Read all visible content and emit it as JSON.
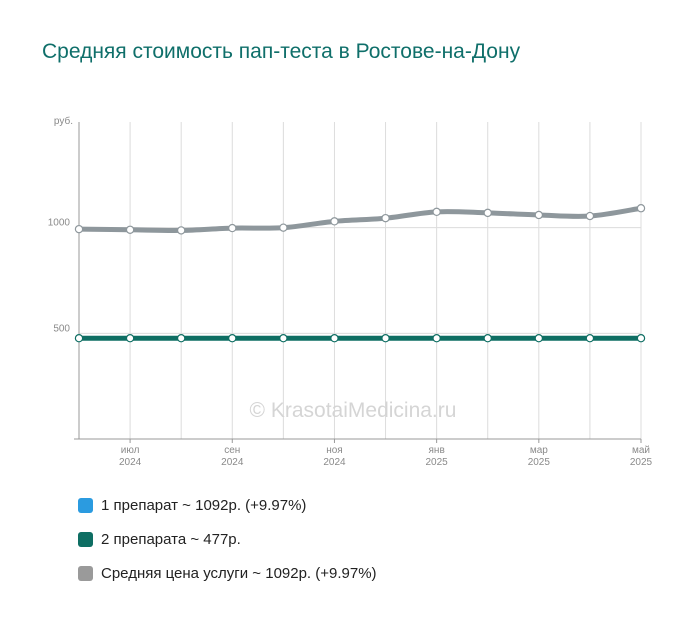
{
  "title": "Средняя стоимость пап-теста в Ростове-на-Дону",
  "watermark": "© KrasotaiMedicina.ru",
  "chart_data": {
    "type": "line",
    "title": "Средняя стоимость пап-теста в Ростове-на-Дону",
    "ylabel": "руб.",
    "ylim": [
      0,
      1500
    ],
    "yticks": [
      500,
      1000
    ],
    "x": [
      "2024-06",
      "2024-07",
      "2024-08",
      "2024-09",
      "2024-10",
      "2024-11",
      "2024-12",
      "2025-01",
      "2025-02",
      "2025-03",
      "2025-04",
      "2025-05"
    ],
    "xtick_labels": [
      {
        "at": 1,
        "month": "июл",
        "year": "2024"
      },
      {
        "at": 3,
        "month": "сен",
        "year": "2024"
      },
      {
        "at": 5,
        "month": "ноя",
        "year": "2024"
      },
      {
        "at": 7,
        "month": "янв",
        "year": "2025"
      },
      {
        "at": 9,
        "month": "мар",
        "year": "2025"
      },
      {
        "at": 11,
        "month": "май",
        "year": "2025"
      }
    ],
    "grid": true,
    "series": [
      {
        "name": "Средняя цена услуги",
        "color": "#8e979c",
        "values": [
          993,
          990,
          987,
          998,
          1000,
          1030,
          1045,
          1075,
          1070,
          1060,
          1055,
          1092
        ]
      },
      {
        "name": "2 препарата",
        "color": "#0e6e63",
        "values": [
          477,
          477,
          477,
          477,
          477,
          477,
          477,
          477,
          477,
          477,
          477,
          477
        ]
      }
    ]
  },
  "legend": [
    {
      "label": "1 препарат ~ 1092р. (+9.97%)",
      "color": "#2b9be0"
    },
    {
      "label": "2 препарата ~ 477р.",
      "color": "#0e6e63"
    },
    {
      "label": "Средняя цена услуги ~ 1092р. (+9.97%)",
      "color": "#9a9a9a"
    }
  ]
}
